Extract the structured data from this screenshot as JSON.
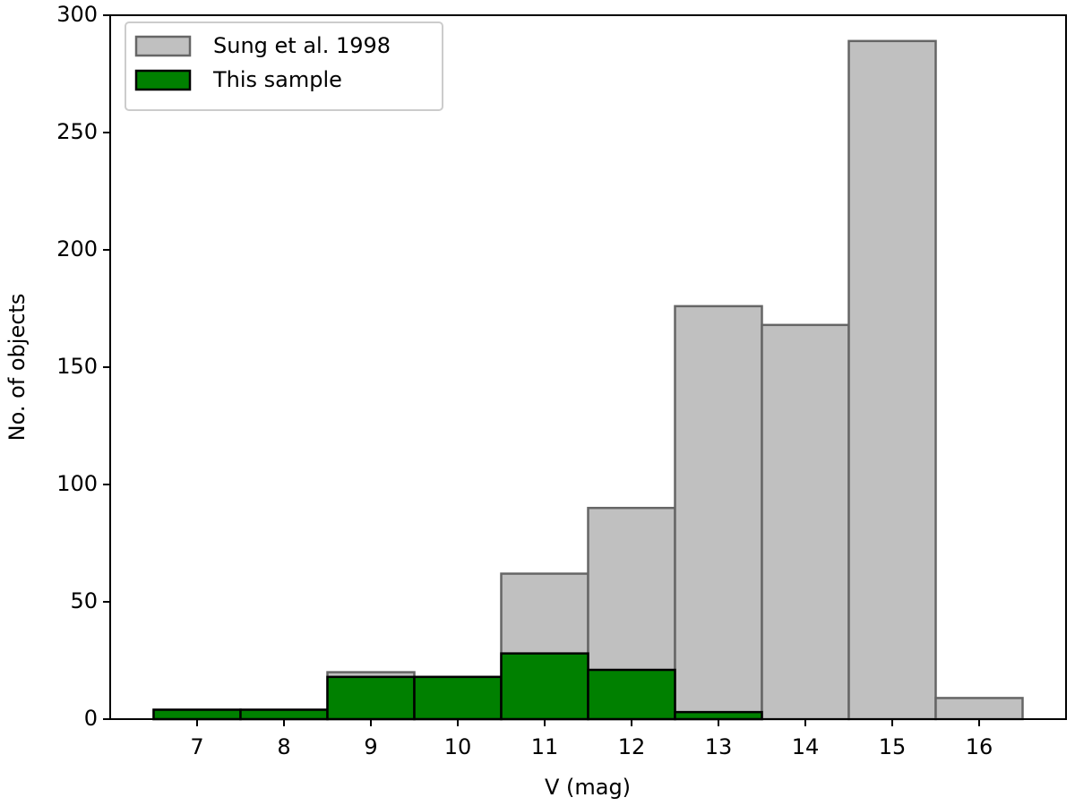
{
  "chart_data": {
    "type": "histogram",
    "xlabel": "V (mag)",
    "ylabel": "No. of objects",
    "bins": [
      6.5,
      7.5,
      8.5,
      9.5,
      10.5,
      11.5,
      12.5,
      13.5,
      14.5,
      15.5,
      16.5
    ],
    "series": [
      {
        "name": "Sung et al. 1998",
        "color": "#c0c0c0",
        "edgecolor": "#666666",
        "values": [
          4,
          4,
          20,
          18,
          62,
          90,
          176,
          168,
          289,
          9
        ]
      },
      {
        "name": "This sample",
        "color": "#008000",
        "edgecolor": "#000000",
        "values": [
          4,
          4,
          18,
          18,
          28,
          21,
          3,
          0,
          0,
          0
        ]
      }
    ],
    "xlim": [
      6,
      17
    ],
    "ylim": [
      0,
      300
    ],
    "xticks": [
      7,
      8,
      9,
      10,
      11,
      12,
      13,
      14,
      15,
      16
    ],
    "yticks": [
      0,
      50,
      100,
      150,
      200,
      250,
      300
    ],
    "legend": "upper left"
  }
}
